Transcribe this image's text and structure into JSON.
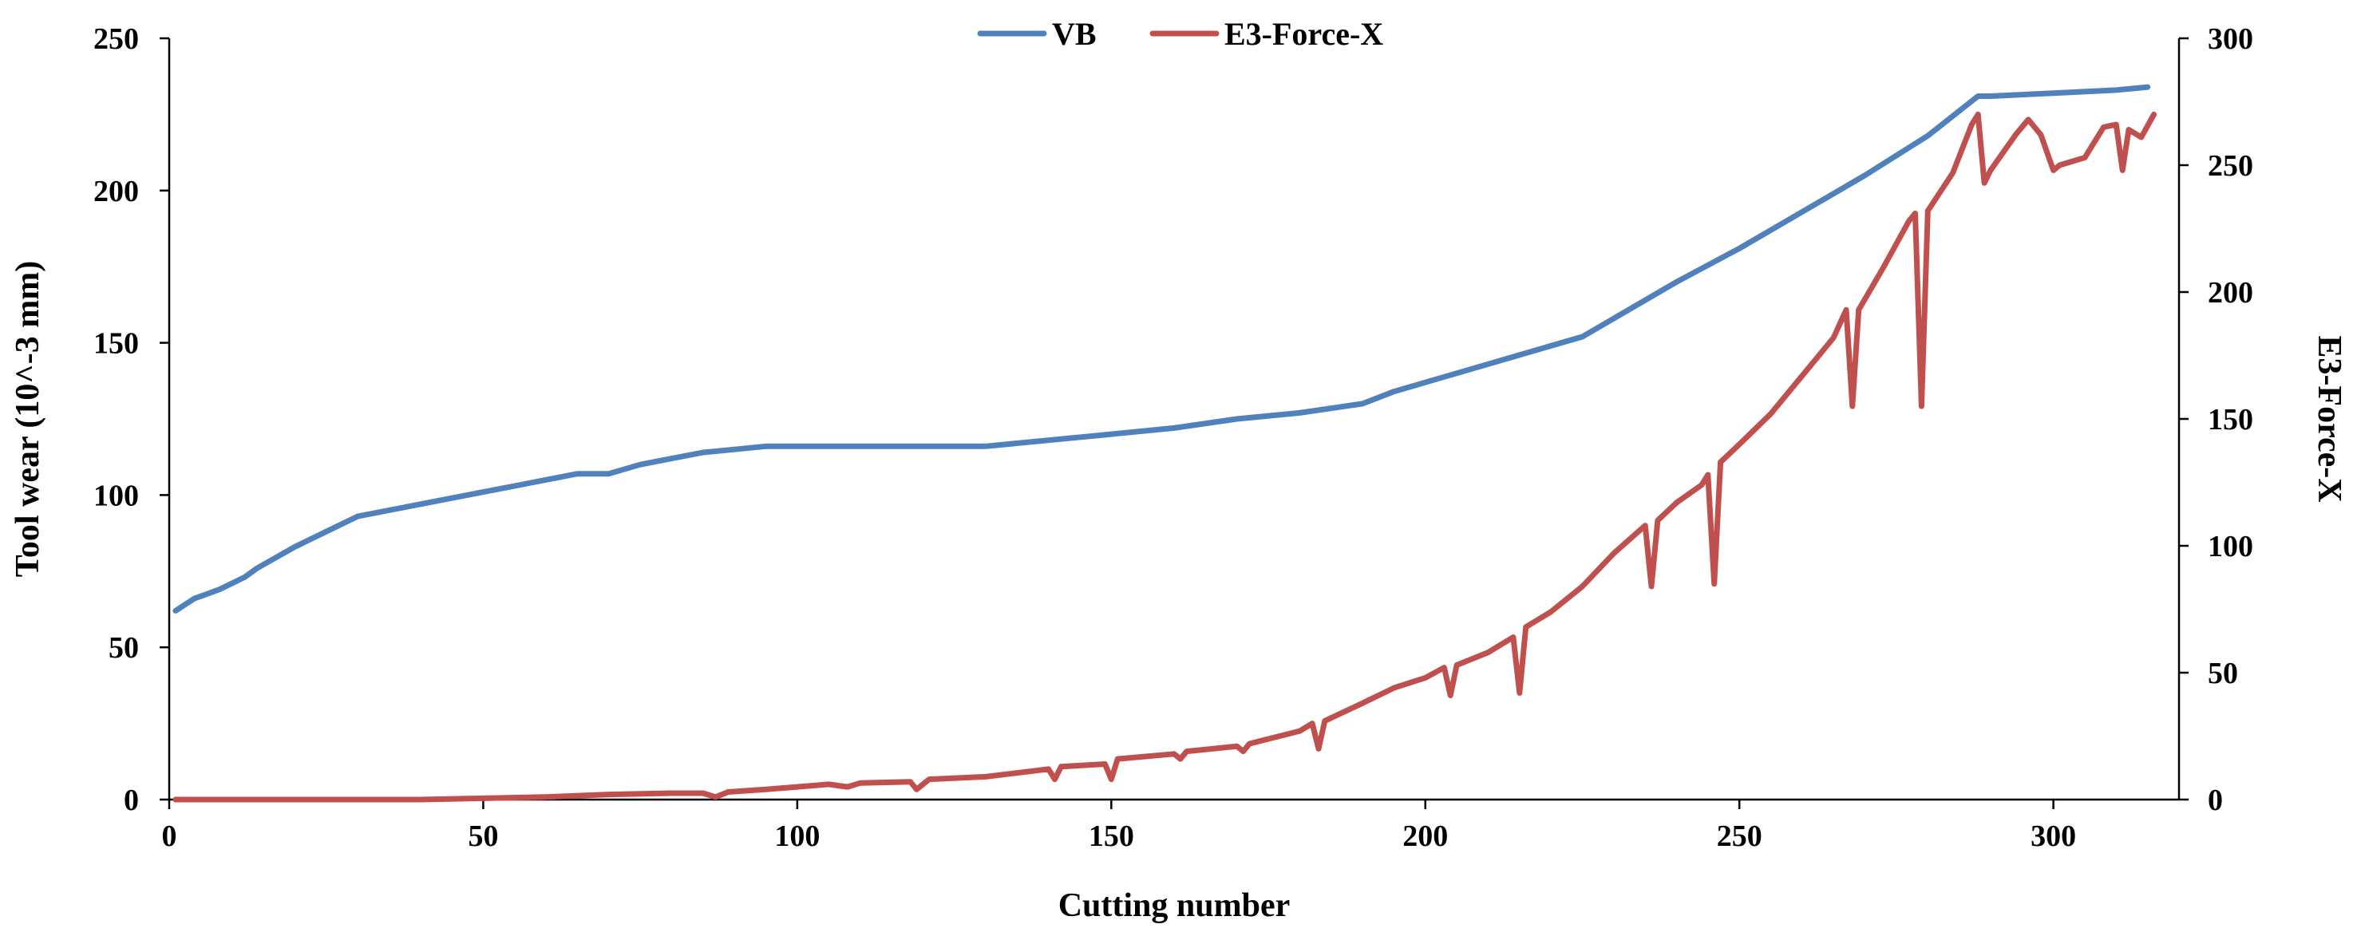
{
  "chart_data": {
    "type": "line",
    "title": "",
    "xlabel": "Cutting number",
    "ylabel": "Tool wear (10^-3 mm)",
    "y2label": "E3-Force-X",
    "xlim": [
      0,
      320
    ],
    "ylim": [
      0,
      250
    ],
    "y2lim": [
      0,
      300
    ],
    "x_ticks": [
      "0",
      "50",
      "100",
      "150",
      "200",
      "250",
      "300"
    ],
    "y_ticks": [
      "0",
      "50",
      "100",
      "150",
      "200",
      "250"
    ],
    "y2_ticks": [
      "0",
      "50",
      "100",
      "150",
      "200",
      "250",
      "300"
    ],
    "grid": false,
    "legend_position": "top-center",
    "colors": {
      "VB": "#4f81bd",
      "E3-Force-X": "#c0504d"
    },
    "series": [
      {
        "name": "VB",
        "axis": "left",
        "points": [
          [
            1,
            62
          ],
          [
            4,
            66
          ],
          [
            8,
            69
          ],
          [
            12,
            73
          ],
          [
            14,
            76
          ],
          [
            20,
            83
          ],
          [
            25,
            88
          ],
          [
            30,
            93
          ],
          [
            35,
            95
          ],
          [
            40,
            97
          ],
          [
            45,
            99
          ],
          [
            50,
            101
          ],
          [
            55,
            103
          ],
          [
            60,
            105
          ],
          [
            65,
            107
          ],
          [
            70,
            107
          ],
          [
            75,
            110
          ],
          [
            80,
            112
          ],
          [
            85,
            114
          ],
          [
            90,
            115
          ],
          [
            95,
            116
          ],
          [
            100,
            116
          ],
          [
            110,
            116
          ],
          [
            120,
            116
          ],
          [
            130,
            116
          ],
          [
            140,
            118
          ],
          [
            150,
            120
          ],
          [
            160,
            122
          ],
          [
            170,
            125
          ],
          [
            180,
            127
          ],
          [
            190,
            130
          ],
          [
            195,
            134
          ],
          [
            200,
            137
          ],
          [
            210,
            143
          ],
          [
            220,
            149
          ],
          [
            225,
            152
          ],
          [
            230,
            158
          ],
          [
            240,
            170
          ],
          [
            250,
            181
          ],
          [
            260,
            193
          ],
          [
            270,
            205
          ],
          [
            280,
            218
          ],
          [
            288,
            231
          ],
          [
            290,
            231
          ],
          [
            300,
            232
          ],
          [
            310,
            233
          ],
          [
            315,
            234
          ]
        ]
      },
      {
        "name": "E3-Force-X",
        "axis": "right",
        "points": [
          [
            1,
            0
          ],
          [
            20,
            0
          ],
          [
            40,
            0
          ],
          [
            60,
            1
          ],
          [
            70,
            2
          ],
          [
            80,
            2.5
          ],
          [
            85,
            2.5
          ],
          [
            87,
            1
          ],
          [
            89,
            3
          ],
          [
            95,
            4
          ],
          [
            100,
            5
          ],
          [
            105,
            6
          ],
          [
            108,
            5
          ],
          [
            110,
            6.5
          ],
          [
            118,
            7
          ],
          [
            119,
            4
          ],
          [
            121,
            8
          ],
          [
            130,
            9
          ],
          [
            140,
            12
          ],
          [
            141,
            8
          ],
          [
            142,
            13
          ],
          [
            149,
            14
          ],
          [
            150,
            8
          ],
          [
            151,
            16
          ],
          [
            160,
            18
          ],
          [
            161,
            16
          ],
          [
            162,
            19
          ],
          [
            170,
            21
          ],
          [
            171,
            19
          ],
          [
            172,
            22
          ],
          [
            180,
            27
          ],
          [
            182,
            30
          ],
          [
            183,
            20
          ],
          [
            184,
            31
          ],
          [
            190,
            38
          ],
          [
            195,
            44
          ],
          [
            200,
            48
          ],
          [
            203,
            52
          ],
          [
            204,
            41
          ],
          [
            205,
            53
          ],
          [
            210,
            58
          ],
          [
            214,
            64
          ],
          [
            215,
            42
          ],
          [
            216,
            68
          ],
          [
            220,
            74
          ],
          [
            225,
            84
          ],
          [
            230,
            97
          ],
          [
            235,
            108
          ],
          [
            236,
            84
          ],
          [
            237,
            110
          ],
          [
            240,
            117
          ],
          [
            244,
            124
          ],
          [
            245,
            128
          ],
          [
            246,
            85
          ],
          [
            247,
            133
          ],
          [
            250,
            140
          ],
          [
            255,
            152
          ],
          [
            260,
            167
          ],
          [
            265,
            182
          ],
          [
            267,
            193
          ],
          [
            268,
            155
          ],
          [
            269,
            193
          ],
          [
            273,
            210
          ],
          [
            277,
            228
          ],
          [
            278,
            231
          ],
          [
            279,
            155
          ],
          [
            280,
            232
          ],
          [
            284,
            247
          ],
          [
            287,
            266
          ],
          [
            288,
            270
          ],
          [
            289,
            243
          ],
          [
            290,
            248
          ],
          [
            294,
            262
          ],
          [
            296,
            268
          ],
          [
            298,
            262
          ],
          [
            300,
            248
          ],
          [
            301,
            250
          ],
          [
            305,
            253
          ],
          [
            308,
            265
          ],
          [
            310,
            266
          ],
          [
            311,
            248
          ],
          [
            312,
            264
          ],
          [
            314,
            261
          ],
          [
            316,
            270
          ]
        ]
      }
    ]
  }
}
